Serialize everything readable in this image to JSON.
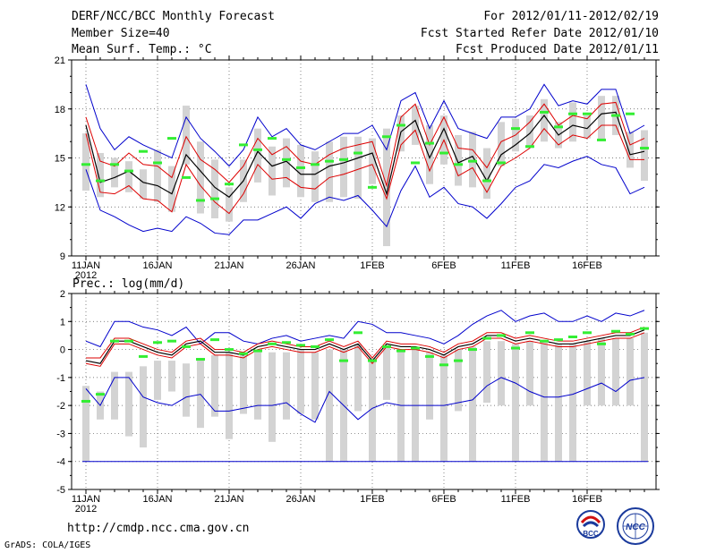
{
  "header": {
    "title": "DERF/NCC/BCC Monthly Forecast",
    "member_size": "Member Size=40",
    "variable": "Mean Surf. Temp.: °C",
    "period": "For 2012/01/11-2012/02/19",
    "started": "Fcst Started Refer Date 2012/01/10",
    "produced": "Fcst Produced Date 2012/01/11"
  },
  "footer": {
    "url": "http://cmdp.ncc.cma.gov.cn",
    "credit": "GrADS: COLA/IGES",
    "logo_bcc": "BCC",
    "logo_ncc": "NCC"
  },
  "colors": {
    "box": "#d3d3d3",
    "obs": "#33ee33",
    "mean": "#000000",
    "spread": "#dd0000",
    "envelope": "#0000cc",
    "grid": "#555555"
  },
  "chart_data": [
    {
      "type": "line",
      "id": "temperature",
      "title": "Mean Surf. Temp.: °C",
      "xlabel": "",
      "ylabel": "°C",
      "ylim": [
        9,
        21
      ],
      "yticks": [
        "9",
        "12",
        "15",
        "18",
        "21"
      ],
      "xticks": [
        "11JAN",
        "16JAN",
        "21JAN",
        "26JAN",
        "1FEB",
        "6FEB",
        "11FEB",
        "16FEB"
      ],
      "xticks_year": "2012",
      "days": 40,
      "series": [
        {
          "name": "ensemble max",
          "values": [
            19.5,
            16.8,
            15.5,
            16.3,
            15.8,
            15.4,
            15.0,
            17.5,
            16.2,
            15.4,
            14.5,
            15.5,
            17.5,
            16.3,
            16.8,
            15.8,
            15.5,
            16.0,
            16.5,
            16.5,
            17.0,
            15.5,
            18.5,
            19.0,
            16.8,
            18.5,
            16.8,
            16.5,
            16.2,
            17.5,
            17.5,
            18.0,
            19.5,
            18.2,
            18.5,
            18.3,
            19.2,
            19.2,
            16.5,
            17.0
          ]
        },
        {
          "name": "mean plus spread",
          "values": [
            17.5,
            14.8,
            14.5,
            15.3,
            14.6,
            14.5,
            13.8,
            16.3,
            14.9,
            14.3,
            13.5,
            14.5,
            16.2,
            15.2,
            15.7,
            14.8,
            14.6,
            15.2,
            15.6,
            15.8,
            16.0,
            13.3,
            17.5,
            18.3,
            15.8,
            17.5,
            15.6,
            15.5,
            14.4,
            16.0,
            16.4,
            17.2,
            18.3,
            17.0,
            17.6,
            17.4,
            18.3,
            18.4,
            15.8,
            16.2
          ]
        },
        {
          "name": "ensemble mean",
          "values": [
            17.0,
            13.5,
            13.8,
            14.2,
            13.5,
            13.3,
            12.8,
            15.2,
            14.2,
            13.2,
            12.6,
            13.6,
            15.4,
            14.5,
            14.8,
            14.0,
            14.0,
            14.5,
            14.7,
            15.0,
            15.3,
            12.8,
            16.6,
            17.3,
            15.0,
            16.8,
            14.7,
            15.1,
            13.6,
            15.2,
            15.8,
            16.5,
            17.6,
            16.4,
            17.0,
            16.8,
            17.7,
            17.8,
            15.2,
            15.4
          ]
        },
        {
          "name": "mean minus spread",
          "values": [
            16.5,
            12.9,
            12.8,
            13.3,
            12.5,
            12.4,
            11.7,
            14.6,
            13.3,
            12.3,
            11.6,
            12.8,
            14.6,
            13.7,
            13.8,
            13.2,
            13.1,
            13.8,
            14.0,
            14.3,
            14.6,
            12.5,
            15.8,
            16.7,
            14.2,
            16.1,
            13.9,
            14.4,
            12.9,
            14.5,
            15.0,
            15.6,
            16.8,
            15.8,
            16.4,
            16.2,
            17.0,
            17.0,
            14.9,
            14.9
          ]
        },
        {
          "name": "ensemble min",
          "values": [
            14.3,
            11.8,
            11.4,
            10.9,
            10.5,
            10.7,
            10.5,
            11.4,
            11.0,
            10.4,
            10.3,
            11.2,
            11.2,
            11.6,
            12.0,
            11.3,
            12.2,
            12.6,
            12.4,
            12.7,
            11.8,
            10.8,
            13.0,
            14.5,
            12.6,
            13.2,
            12.2,
            12.0,
            11.3,
            12.2,
            13.2,
            13.6,
            14.6,
            14.4,
            14.8,
            15.1,
            14.6,
            14.4,
            12.8,
            13.2
          ]
        },
        {
          "name": "box upper",
          "values": [
            16.5,
            15.3,
            15.0,
            14.8,
            14.3,
            15.5,
            14.5,
            18.2,
            16.0,
            14.9,
            13.2,
            14.9,
            16.8,
            15.7,
            16.2,
            15.8,
            15.4,
            16.0,
            16.3,
            16.3,
            16.2,
            16.8,
            17.6,
            18.2,
            17.0,
            17.6,
            16.4,
            16.6,
            15.6,
            17.2,
            17.4,
            17.6,
            18.6,
            17.2,
            18.4,
            17.6,
            18.8,
            18.8,
            16.6,
            16.7
          ]
        },
        {
          "name": "box lower",
          "values": [
            13.0,
            12.6,
            13.2,
            12.9,
            12.5,
            12.3,
            11.7,
            14.6,
            11.6,
            11.3,
            11.1,
            12.3,
            13.5,
            12.7,
            13.2,
            12.6,
            12.3,
            12.3,
            12.6,
            12.5,
            13.4,
            9.6,
            15.4,
            15.8,
            13.4,
            14.6,
            13.3,
            13.2,
            12.5,
            14.5,
            15.4,
            15.6,
            16.0,
            15.6,
            16.0,
            16.2,
            16.1,
            16.4,
            14.4,
            13.6
          ]
        },
        {
          "name": "observation",
          "values": [
            14.6,
            13.6,
            14.6,
            14.2,
            15.4,
            14.7,
            16.2,
            13.8,
            12.4,
            12.5,
            13.4,
            15.8,
            15.5,
            16.2,
            14.9,
            14.4,
            14.6,
            14.8,
            14.9,
            15.3,
            13.2,
            16.3,
            17.0,
            14.7,
            15.9,
            15.3,
            14.6,
            14.8,
            13.6,
            14.7,
            16.8,
            15.7,
            17.8,
            16.9,
            17.7,
            17.7,
            16.1,
            17.6,
            17.7,
            15.6
          ]
        }
      ]
    },
    {
      "type": "line",
      "id": "precipitation",
      "title": "Prec.: log(mm/d)",
      "xlabel": "",
      "ylabel": "log(mm/d)",
      "ylim": [
        -5,
        2
      ],
      "yticks": [
        "-5",
        "-4",
        "-3",
        "-2",
        "-1",
        "0",
        "1",
        "2"
      ],
      "xticks": [
        "11JAN",
        "16JAN",
        "21JAN",
        "26JAN",
        "1FEB",
        "6FEB",
        "11FEB",
        "16FEB"
      ],
      "xticks_year": "2012",
      "days": 40,
      "series": [
        {
          "name": "ensemble max",
          "values": [
            0.3,
            0.1,
            1.0,
            1.0,
            0.8,
            0.7,
            0.5,
            0.8,
            0.2,
            0.6,
            0.6,
            0.3,
            0.2,
            0.4,
            0.5,
            0.3,
            0.4,
            0.5,
            0.4,
            1.0,
            0.9,
            0.6,
            0.6,
            0.5,
            0.4,
            0.2,
            0.5,
            0.9,
            1.2,
            1.4,
            1.0,
            1.2,
            1.3,
            1.0,
            1.0,
            1.2,
            1.0,
            1.3,
            1.2,
            1.4
          ]
        },
        {
          "name": "mean plus spread",
          "values": [
            -0.3,
            -0.3,
            0.4,
            0.4,
            0.2,
            0.0,
            -0.1,
            0.3,
            0.4,
            0.0,
            0.0,
            -0.1,
            0.2,
            0.3,
            0.2,
            0.1,
            0.1,
            0.3,
            0.1,
            0.3,
            -0.3,
            0.3,
            0.2,
            0.2,
            0.1,
            -0.1,
            0.2,
            0.3,
            0.6,
            0.6,
            0.4,
            0.5,
            0.4,
            0.3,
            0.3,
            0.4,
            0.5,
            0.6,
            0.6,
            0.8
          ]
        },
        {
          "name": "ensemble mean",
          "values": [
            -0.4,
            -0.5,
            0.3,
            0.3,
            0.1,
            -0.1,
            -0.2,
            0.2,
            0.3,
            -0.1,
            -0.1,
            -0.2,
            0.1,
            0.2,
            0.1,
            0.0,
            0.0,
            0.2,
            0.0,
            0.2,
            -0.4,
            0.2,
            0.1,
            0.1,
            0.0,
            -0.2,
            0.1,
            0.2,
            0.5,
            0.5,
            0.3,
            0.4,
            0.3,
            0.2,
            0.2,
            0.3,
            0.4,
            0.5,
            0.5,
            0.7
          ]
        },
        {
          "name": "mean minus spread",
          "values": [
            -0.5,
            -0.6,
            0.2,
            0.2,
            0.0,
            -0.2,
            -0.3,
            0.1,
            0.2,
            -0.2,
            -0.2,
            -0.3,
            0.0,
            0.1,
            0.0,
            -0.1,
            -0.1,
            0.1,
            -0.1,
            0.1,
            -0.5,
            0.1,
            0.0,
            0.0,
            -0.1,
            -0.3,
            0.0,
            0.1,
            0.4,
            0.4,
            0.2,
            0.3,
            0.2,
            0.1,
            0.1,
            0.2,
            0.3,
            0.4,
            0.4,
            0.6
          ]
        },
        {
          "name": "ensemble min",
          "values": [
            -1.4,
            -2.0,
            -1.0,
            -1.0,
            -1.7,
            -1.9,
            -2.0,
            -1.7,
            -1.6,
            -2.2,
            -2.2,
            -2.1,
            -2.0,
            -2.0,
            -1.9,
            -2.3,
            -2.6,
            -1.5,
            -2.0,
            -2.5,
            -2.1,
            -1.9,
            -2.0,
            -2.0,
            -2.0,
            -2.0,
            -1.9,
            -1.8,
            -1.3,
            -1.0,
            -1.2,
            -1.5,
            -1.7,
            -1.7,
            -1.6,
            -1.4,
            -1.2,
            -1.5,
            -1.1,
            -1.0
          ]
        },
        {
          "name": "box upper",
          "values": [
            -1.3,
            -1.5,
            -0.8,
            -0.8,
            -0.6,
            -0.4,
            -0.4,
            -0.5,
            -0.3,
            -0.2,
            -0.1,
            -0.2,
            -0.1,
            -0.1,
            -0.1,
            0.0,
            -0.1,
            0.0,
            0.0,
            0.2,
            -0.3,
            0.1,
            0.0,
            0.0,
            -0.1,
            -0.2,
            0.0,
            0.1,
            0.3,
            0.3,
            0.2,
            0.3,
            0.3,
            0.2,
            0.2,
            0.3,
            0.4,
            0.4,
            0.4,
            0.6
          ]
        },
        {
          "name": "box lower",
          "values": [
            -4.0,
            -2.5,
            -2.5,
            -3.1,
            -3.5,
            -1.8,
            -1.5,
            -2.4,
            -2.8,
            -2.4,
            -3.2,
            -2.3,
            -2.5,
            -3.3,
            -2.5,
            -2.3,
            -2.5,
            -4.0,
            -4.0,
            -2.2,
            -4.0,
            -1.8,
            -4.0,
            -4.0,
            -2.5,
            -4.0,
            -2.2,
            -4.0,
            -1.9,
            -2.0,
            -4.0,
            -2.0,
            -4.0,
            -4.0,
            -4.0,
            -2.0,
            -2.0,
            -2.0,
            -2.0,
            -4.0
          ]
        },
        {
          "name": "observation",
          "values": [
            -1.85,
            -1.6,
            0.3,
            0.3,
            -0.25,
            0.25,
            0.3,
            0.1,
            -0.35,
            0.35,
            0.0,
            -0.15,
            -0.05,
            0.2,
            0.25,
            0.15,
            0.1,
            0.35,
            -0.4,
            0.6,
            -0.4,
            0.1,
            -0.05,
            0.05,
            -0.25,
            -0.55,
            -0.4,
            0.0,
            0.4,
            0.5,
            0.05,
            0.6,
            0.3,
            0.35,
            0.45,
            0.6,
            0.2,
            0.65,
            0.55,
            0.75
          ]
        }
      ]
    }
  ]
}
